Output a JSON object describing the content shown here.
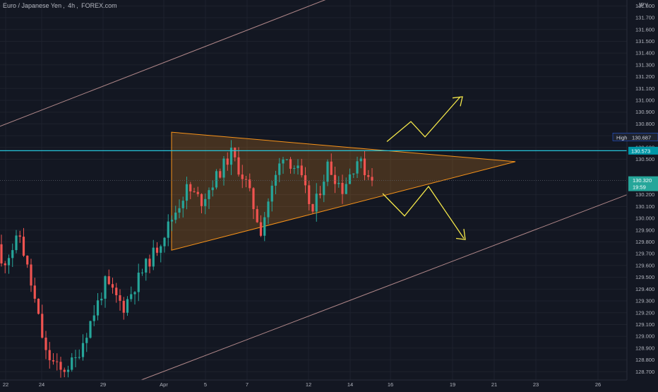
{
  "header": {
    "symbol": "Euro / Japanese Yen",
    "interval": "4h",
    "source": "FOREX.com",
    "currency": "JPY"
  },
  "price_tags": {
    "high_label": "High",
    "high_value": "130.687",
    "line_value": "130.573",
    "last_value": "130.320",
    "countdown": "19:59"
  },
  "colors": {
    "background": "#131722",
    "up": "#26a69a",
    "down": "#ef5350",
    "triangle": "#f7931a",
    "hline": "#26c6da",
    "arrows": "#f5e84a",
    "channel": "#d8a3a3",
    "axis_text": "#b2b5be"
  },
  "chart_data": {
    "type": "candlestick",
    "title": "Euro / Japanese Yen, 4h, FOREX.com",
    "ylim": [
      128.63,
      131.85
    ],
    "y_ticks": [
      128.7,
      128.8,
      128.9,
      129.0,
      129.1,
      129.2,
      129.3,
      129.4,
      129.5,
      129.6,
      129.7,
      129.8,
      129.9,
      130.0,
      130.1,
      130.2,
      130.5,
      130.6,
      130.7,
      130.8,
      130.9,
      131.0,
      131.1,
      131.2,
      131.3,
      131.4,
      131.5,
      131.6,
      131.7,
      131.8
    ],
    "y_tick_format": 3,
    "x_ticks": [
      "22",
      "24",
      "29",
      "Apr",
      "5",
      "7",
      "12",
      "14",
      "16",
      "19",
      "21",
      "23",
      "26"
    ],
    "candles": {
      "count": 101,
      "first_open": 129.78,
      "last_close": 130.32,
      "note_series": "OHLC bars"
    },
    "horizontal_line": 130.573,
    "triangle": {
      "vertices": [
        [
          0,
          130.73
        ],
        [
          0,
          129.73
        ],
        [
          1,
          130.48
        ]
      ]
    },
    "annotations": [
      "bullish breakout path",
      "bearish breakout path"
    ]
  }
}
